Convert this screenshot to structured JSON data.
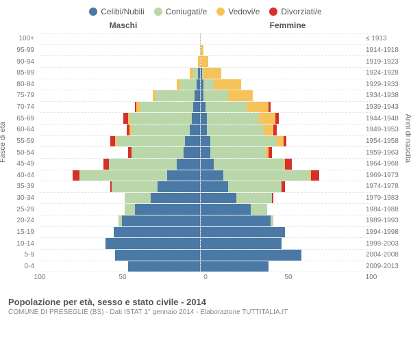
{
  "chart": {
    "type": "population-pyramid",
    "legend": [
      {
        "label": "Celibi/Nubili",
        "color": "#4a79a6"
      },
      {
        "label": "Coniugati/e",
        "color": "#b9d7a8"
      },
      {
        "label": "Vedovi/e",
        "color": "#f6c35a"
      },
      {
        "label": "Divorziati/e",
        "color": "#d6302a"
      }
    ],
    "header_left": "Maschi",
    "header_right": "Femmine",
    "ylabel_left": "Fasce di età",
    "ylabel_right": "Anni di nascita",
    "xmax": 100,
    "xticks": [
      100,
      50,
      0,
      50,
      100
    ],
    "background_color": "#ffffff",
    "grid_color": "#e5e5e5",
    "center_line_color": "#bbbbbb",
    "label_fontsize": 10,
    "rows": [
      {
        "age": "100+",
        "year": "≤ 1913",
        "m": [
          0,
          0,
          0,
          0
        ],
        "f": [
          0,
          0,
          0,
          0
        ]
      },
      {
        "age": "95-99",
        "year": "1914-1918",
        "m": [
          0,
          0,
          0,
          0
        ],
        "f": [
          0,
          0,
          2,
          0
        ]
      },
      {
        "age": "90-94",
        "year": "1919-1923",
        "m": [
          0,
          0,
          1,
          0
        ],
        "f": [
          0,
          0,
          5,
          0
        ]
      },
      {
        "age": "85-89",
        "year": "1924-1928",
        "m": [
          1,
          3,
          2,
          0
        ],
        "f": [
          1,
          1,
          11,
          0
        ]
      },
      {
        "age": "80-84",
        "year": "1929-1933",
        "m": [
          2,
          10,
          2,
          0
        ],
        "f": [
          2,
          6,
          17,
          0
        ]
      },
      {
        "age": "75-79",
        "year": "1934-1938",
        "m": [
          3,
          24,
          2,
          0
        ],
        "f": [
          2,
          15,
          15,
          0
        ]
      },
      {
        "age": "70-74",
        "year": "1939-1943",
        "m": [
          4,
          33,
          2,
          1
        ],
        "f": [
          3,
          26,
          13,
          1
        ]
      },
      {
        "age": "65-69",
        "year": "1944-1948",
        "m": [
          5,
          38,
          1,
          3
        ],
        "f": [
          4,
          32,
          10,
          2
        ]
      },
      {
        "age": "60-64",
        "year": "1949-1953",
        "m": [
          6,
          36,
          1,
          2
        ],
        "f": [
          4,
          35,
          6,
          2
        ]
      },
      {
        "age": "55-59",
        "year": "1954-1958",
        "m": [
          9,
          42,
          1,
          3
        ],
        "f": [
          6,
          41,
          4,
          2
        ]
      },
      {
        "age": "50-54",
        "year": "1959-1963",
        "m": [
          10,
          32,
          0,
          2
        ],
        "f": [
          6,
          34,
          2,
          2
        ]
      },
      {
        "age": "45-49",
        "year": "1964-1968",
        "m": [
          14,
          42,
          0,
          3
        ],
        "f": [
          8,
          43,
          1,
          4
        ]
      },
      {
        "age": "40-44",
        "year": "1969-1973",
        "m": [
          20,
          54,
          0,
          4
        ],
        "f": [
          14,
          53,
          1,
          5
        ]
      },
      {
        "age": "35-39",
        "year": "1974-1978",
        "m": [
          26,
          28,
          0,
          1
        ],
        "f": [
          17,
          33,
          0,
          2
        ]
      },
      {
        "age": "30-34",
        "year": "1979-1983",
        "m": [
          30,
          16,
          0,
          0
        ],
        "f": [
          22,
          22,
          0,
          1
        ]
      },
      {
        "age": "25-29",
        "year": "1984-1988",
        "m": [
          40,
          6,
          0,
          0
        ],
        "f": [
          31,
          10,
          0,
          0
        ]
      },
      {
        "age": "20-24",
        "year": "1989-1993",
        "m": [
          48,
          2,
          0,
          0
        ],
        "f": [
          43,
          2,
          0,
          0
        ]
      },
      {
        "age": "15-19",
        "year": "1994-1998",
        "m": [
          53,
          0,
          0,
          0
        ],
        "f": [
          52,
          0,
          0,
          0
        ]
      },
      {
        "age": "10-14",
        "year": "1999-2003",
        "m": [
          58,
          0,
          0,
          0
        ],
        "f": [
          50,
          0,
          0,
          0
        ]
      },
      {
        "age": "5-9",
        "year": "2004-2008",
        "m": [
          52,
          0,
          0,
          0
        ],
        "f": [
          62,
          0,
          0,
          0
        ]
      },
      {
        "age": "0-4",
        "year": "2009-2013",
        "m": [
          44,
          0,
          0,
          0
        ],
        "f": [
          42,
          0,
          0,
          0
        ]
      }
    ]
  },
  "footer": {
    "title": "Popolazione per età, sesso e stato civile - 2014",
    "subtitle": "COMUNE DI PRESEGLIE (BS) - Dati ISTAT 1° gennaio 2014 - Elaborazione TUTTITALIA.IT"
  }
}
